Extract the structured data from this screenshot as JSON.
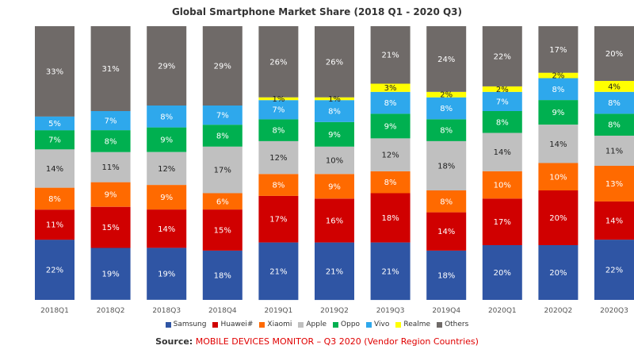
{
  "chart_data": {
    "type": "bar",
    "stacked": true,
    "title": "Global Smartphone Market Share (2018 Q1 - 2020 Q3)",
    "categories": [
      "2018Q1",
      "2018Q2",
      "2018Q3",
      "2018Q4",
      "2019Q1",
      "2019Q2",
      "2019Q3",
      "2019Q4",
      "2020Q1",
      "2020Q2",
      "2020Q3"
    ],
    "ylim": [
      0,
      100
    ],
    "grid": false,
    "legend_position": "bottom",
    "series": [
      {
        "name": "Samsung",
        "color": "#2f55a4",
        "values": [
          22,
          19,
          19,
          18,
          21,
          21,
          21,
          18,
          20,
          20,
          22
        ],
        "labels": [
          "22%",
          "19%",
          "19%",
          "18%",
          "21%",
          "21%",
          "21%",
          "18%",
          "20%",
          "20%",
          "22%"
        ]
      },
      {
        "name": "Huawei#",
        "color": "#d00000",
        "values": [
          11,
          15,
          14,
          15,
          17,
          16,
          18,
          14,
          17,
          20,
          14
        ],
        "labels": [
          "11%",
          "15%",
          "14%",
          "15%",
          "17%",
          "16%",
          "18%",
          "14%",
          "17%",
          "20%",
          "14%"
        ]
      },
      {
        "name": "Xiaomi",
        "color": "#ff6a00",
        "values": [
          8,
          9,
          9,
          6,
          8,
          9,
          8,
          8,
          10,
          10,
          13
        ],
        "labels": [
          "8%",
          "9%",
          "9%",
          "6%",
          "8%",
          "9%",
          "8%",
          "8%",
          "10%",
          "10%",
          "13%"
        ]
      },
      {
        "name": "Apple",
        "color": "#c0c0c0",
        "values": [
          14,
          11,
          12,
          17,
          12,
          10,
          12,
          18,
          14,
          14,
          11
        ],
        "labels": [
          "14%",
          "11%",
          "12%",
          "17%",
          "12%",
          "10%",
          "12%",
          "18%",
          "14%",
          "14%",
          "11%"
        ]
      },
      {
        "name": "Oppo",
        "color": "#00b050",
        "values": [
          7,
          8,
          9,
          8,
          8,
          9,
          9,
          8,
          8,
          9,
          8
        ],
        "labels": [
          "7%",
          "8%",
          "9%",
          "8%",
          "8%",
          "9%",
          "9%",
          "8%",
          "8%",
          "9%",
          "8%"
        ]
      },
      {
        "name": "Vivo",
        "color": "#2ea8ec",
        "values": [
          5,
          7,
          8,
          7,
          7,
          8,
          8,
          8,
          7,
          8,
          8
        ],
        "labels": [
          "5%",
          "7%",
          "8%",
          "7%",
          "7%",
          "8%",
          "8%",
          "8%",
          "7%",
          "8%",
          "8%"
        ]
      },
      {
        "name": "Realme",
        "color": "#ffff00",
        "values": [
          0,
          0,
          0,
          0,
          1,
          1,
          3,
          2,
          2,
          2,
          4
        ],
        "labels": [
          "",
          "",
          "",
          "",
          "1%",
          "1%",
          "3%",
          "2%",
          "2%",
          "2%",
          "4%"
        ]
      },
      {
        "name": "Others",
        "color": "#6f6a68",
        "values": [
          33,
          31,
          29,
          29,
          26,
          26,
          21,
          24,
          22,
          17,
          20
        ],
        "labels": [
          "33%",
          "31%",
          "29%",
          "29%",
          "26%",
          "26%",
          "21%",
          "24%",
          "22%",
          "17%",
          "20%"
        ]
      }
    ]
  },
  "source": {
    "prefix": "Source:",
    "text": "MOBILE DEVICES MONITOR – Q3 2020 (Vendor Region Countries)"
  }
}
